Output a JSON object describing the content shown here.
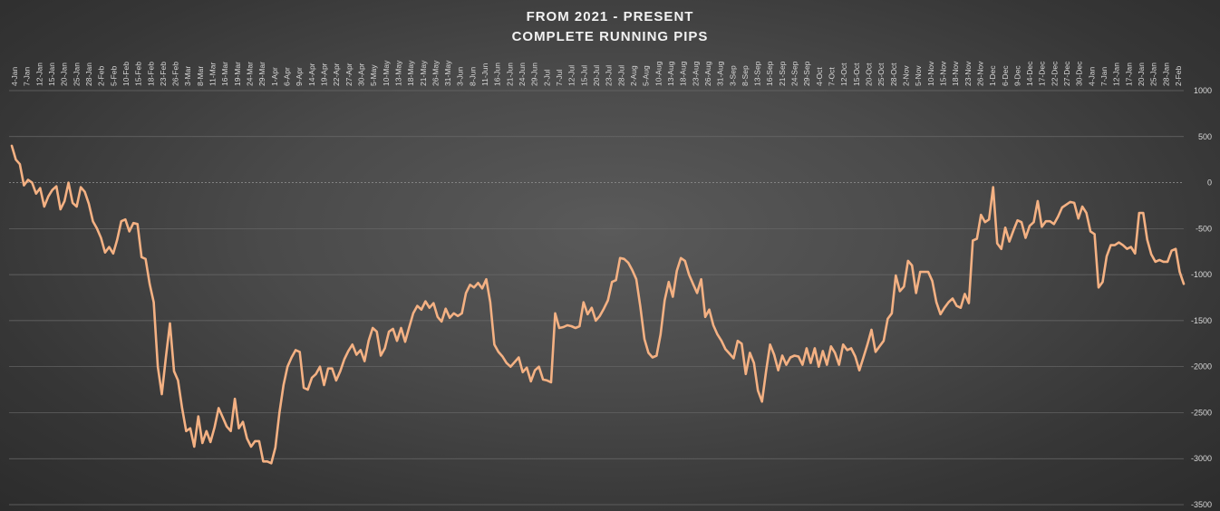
{
  "chart_data": {
    "type": "line",
    "title": "FROM 2021 - PRESENT",
    "subtitle": "COMPLETE RUNNING PIPS",
    "xlabel": "",
    "ylabel": "",
    "ylim": [
      -3500,
      1000
    ],
    "yticks": [
      1000,
      500,
      0,
      -500,
      -1000,
      -1500,
      -2000,
      -2500,
      -3000,
      -3500
    ],
    "grid": true,
    "legend": "none",
    "line_color": "#f4b183",
    "x_tick_labels": [
      "4-Jan",
      "7-Jan",
      "12-Jan",
      "15-Jan",
      "20-Jan",
      "25-Jan",
      "28-Jan",
      "2-Feb",
      "5-Feb",
      "10-Feb",
      "15-Feb",
      "18-Feb",
      "23-Feb",
      "26-Feb",
      "3-Mar",
      "8-Mar",
      "11-Mar",
      "16-Mar",
      "19-Mar",
      "24-Mar",
      "29-Mar",
      "1-Apr",
      "6-Apr",
      "9-Apr",
      "14-Apr",
      "19-Apr",
      "22-Apr",
      "27-Apr",
      "30-Apr",
      "5-May",
      "10-May",
      "13-May",
      "18-May",
      "21-May",
      "26-May",
      "31-May",
      "3-Jun",
      "8-Jun",
      "11-Jun",
      "16-Jun",
      "21-Jun",
      "24-Jun",
      "29-Jun",
      "2-Jul",
      "7-Jul",
      "12-Jul",
      "15-Jul",
      "20-Jul",
      "23-Jul",
      "28-Jul",
      "2-Aug",
      "5-Aug",
      "10-Aug",
      "13-Aug",
      "18-Aug",
      "23-Aug",
      "26-Aug",
      "31-Aug",
      "3-Sep",
      "8-Sep",
      "13-Sep",
      "16-Sep",
      "21-Sep",
      "24-Sep",
      "29-Sep",
      "4-Oct",
      "7-Oct",
      "12-Oct",
      "15-Oct",
      "20-Oct",
      "25-Oct",
      "28-Oct",
      "2-Nov",
      "5-Nov",
      "10-Nov",
      "15-Nov",
      "18-Nov",
      "23-Nov",
      "26-Nov",
      "1-Dec",
      "6-Dec",
      "9-Dec",
      "14-Dec",
      "17-Dec",
      "22-Dec",
      "27-Dec",
      "30-Dec",
      "4-Jan",
      "7-Jan",
      "12-Jan",
      "17-Jan",
      "20-Jan",
      "25-Jan",
      "28-Jan",
      "2-Feb"
    ],
    "series": [
      {
        "values": [
          400,
          250,
          200,
          -30,
          30,
          0,
          -120,
          -60,
          -260,
          -150,
          -80,
          -40,
          -290,
          -200,
          0,
          -220,
          -260,
          -50,
          -100,
          -230,
          -420,
          -500,
          -600,
          -760,
          -700,
          -770,
          -620,
          -420,
          -400,
          -530,
          -440,
          -450,
          -810,
          -830,
          -1100,
          -1300,
          -2000,
          -2300,
          -1900,
          -1530,
          -2050,
          -2150,
          -2450,
          -2700,
          -2670,
          -2870,
          -2540,
          -2830,
          -2700,
          -2820,
          -2660,
          -2450,
          -2550,
          -2650,
          -2700,
          -2350,
          -2670,
          -2600,
          -2780,
          -2870,
          -2810,
          -2810,
          -3030,
          -3030,
          -3050,
          -2880,
          -2500,
          -2200,
          -2000,
          -1900,
          -1820,
          -1840,
          -2230,
          -2250,
          -2120,
          -2080,
          -2000,
          -2200,
          -2020,
          -2020,
          -2150,
          -2050,
          -1920,
          -1830,
          -1760,
          -1870,
          -1820,
          -1940,
          -1720,
          -1580,
          -1620,
          -1880,
          -1800,
          -1620,
          -1590,
          -1720,
          -1580,
          -1730,
          -1570,
          -1420,
          -1340,
          -1380,
          -1290,
          -1360,
          -1310,
          -1460,
          -1510,
          -1370,
          -1470,
          -1420,
          -1450,
          -1420,
          -1200,
          -1110,
          -1140,
          -1090,
          -1150,
          -1050,
          -1300,
          -1760,
          -1840,
          -1890,
          -1960,
          -2000,
          -1950,
          -1900,
          -2060,
          -2010,
          -2160,
          -2040,
          -2000,
          -2140,
          -2150,
          -2170,
          -1420,
          -1580,
          -1570,
          -1550,
          -1560,
          -1580,
          -1560,
          -1300,
          -1430,
          -1360,
          -1500,
          -1450,
          -1370,
          -1280,
          -1080,
          -1060,
          -820,
          -830,
          -870,
          -950,
          -1050,
          -1350,
          -1700,
          -1850,
          -1900,
          -1880,
          -1650,
          -1280,
          -1080,
          -1240,
          -960,
          -820,
          -850,
          -1000,
          -1100,
          -1200,
          -1050,
          -1460,
          -1380,
          -1550,
          -1650,
          -1720,
          -1810,
          -1860,
          -1910,
          -1720,
          -1750,
          -2080,
          -1850,
          -1960,
          -2260,
          -2380,
          -2050,
          -1760,
          -1870,
          -2040,
          -1880,
          -1980,
          -1900,
          -1880,
          -1890,
          -1980,
          -1800,
          -1960,
          -1800,
          -2000,
          -1830,
          -1980,
          -1780,
          -1850,
          -1980,
          -1760,
          -1820,
          -1800,
          -1890,
          -2040,
          -1900,
          -1760,
          -1600,
          -1840,
          -1780,
          -1720,
          -1480,
          -1420,
          -1010,
          -1180,
          -1130,
          -850,
          -900,
          -1200,
          -970,
          -970,
          -970,
          -1070,
          -1300,
          -1430,
          -1360,
          -1300,
          -1260,
          -1340,
          -1360,
          -1210,
          -1310,
          -630,
          -610,
          -350,
          -430,
          -400,
          -50,
          -660,
          -720,
          -490,
          -640,
          -520,
          -410,
          -430,
          -600,
          -470,
          -430,
          -200,
          -480,
          -420,
          -420,
          -450,
          -370,
          -270,
          -240,
          -210,
          -220,
          -390,
          -260,
          -330,
          -530,
          -560,
          -1140,
          -1080,
          -800,
          -680,
          -680,
          -650,
          -680,
          -720,
          -700,
          -770,
          -330,
          -330,
          -620,
          -780,
          -860,
          -840,
          -860,
          -860,
          -740,
          -720,
          -970,
          -1100
        ]
      }
    ]
  }
}
